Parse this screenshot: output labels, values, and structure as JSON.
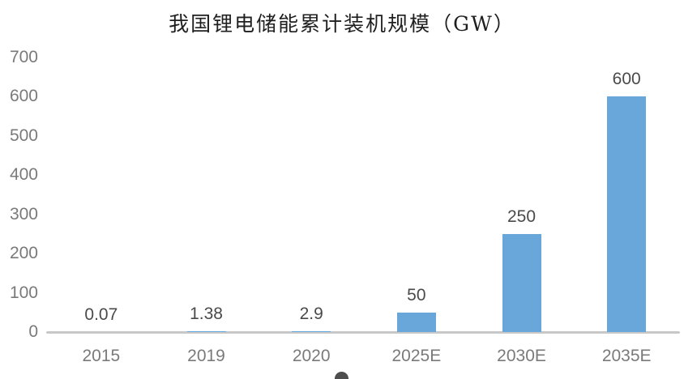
{
  "chart_data": {
    "type": "bar",
    "title": "我国锂电储能累计装机规模（GW）",
    "categories": [
      "2015",
      "2019",
      "2020",
      "2025E",
      "2030E",
      "2035E"
    ],
    "values": [
      0.07,
      1.38,
      2.9,
      50,
      250,
      600
    ],
    "data_labels": [
      "0.07",
      "1.38",
      "2.9",
      "50",
      "250",
      "600"
    ],
    "xlabel": "",
    "ylabel": "",
    "ylim": [
      0,
      700
    ],
    "y_ticks": [
      0,
      100,
      200,
      300,
      400,
      500,
      600,
      700
    ],
    "grid": false,
    "legend_position": "none",
    "bar_color": "#69a6d9",
    "axis_line_color": "#c8c8c8",
    "tick_label_color": "#7a7a7a",
    "data_label_color": "#4a4a4a",
    "title_color": "#1f1f1f",
    "background_color": "#ffffff"
  }
}
